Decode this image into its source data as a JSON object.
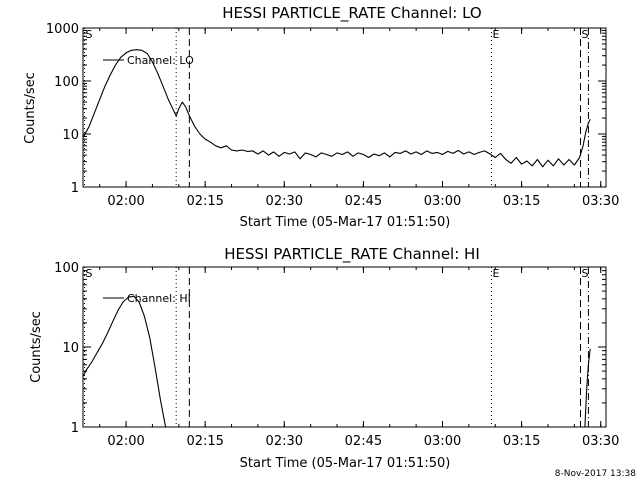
{
  "timestamp": "8-Nov-2017 13:38",
  "chart_data": [
    {
      "type": "line",
      "title": "HESSI PARTICLE_RATE Channel: LO",
      "xlabel": "Start Time (05-Mar-17 01:51:50)",
      "ylabel": "Counts/sec",
      "yscale": "log",
      "xlim": [
        "01:51:50",
        "03:31:00"
      ],
      "ylim": [
        1,
        1000
      ],
      "xtick_labels": [
        "02:00",
        "02:15",
        "02:30",
        "02:45",
        "03:00",
        "03:15",
        "03:30"
      ],
      "ytick_labels": [
        "1",
        "10",
        "100",
        "1000"
      ],
      "legend": "Channel: LO",
      "markers": [
        {
          "label": "S",
          "time": "01:51:50",
          "style": "dotted"
        },
        {
          "label": "",
          "time": "02:09:30",
          "style": "dotted"
        },
        {
          "label": "",
          "time": "02:12:00",
          "style": "dashed"
        },
        {
          "label": "E",
          "time": "03:09:00",
          "style": "dotted"
        },
        {
          "label": "S",
          "time": "03:26:10",
          "style": "dashed"
        },
        {
          "label": "",
          "time": "03:27:40",
          "style": "dashdot"
        }
      ],
      "series": [
        {
          "name": "Channel: LO",
          "points": [
            [
              "01:51:50",
              8.5
            ],
            [
              "01:53:00",
              14
            ],
            [
              "01:54:00",
              25
            ],
            [
              "01:55:00",
              45
            ],
            [
              "01:56:00",
              80
            ],
            [
              "01:57:00",
              130
            ],
            [
              "01:58:00",
              200
            ],
            [
              "01:59:00",
              280
            ],
            [
              "02:00:00",
              340
            ],
            [
              "02:01:00",
              380
            ],
            [
              "02:02:00",
              390
            ],
            [
              "02:03:00",
              380
            ],
            [
              "02:04:00",
              330
            ],
            [
              "02:05:00",
              230
            ],
            [
              "02:06:00",
              140
            ],
            [
              "02:07:00",
              80
            ],
            [
              "02:08:00",
              45
            ],
            [
              "02:09:00",
              28
            ],
            [
              "02:09:30",
              22
            ],
            [
              "02:10:00",
              30
            ],
            [
              "02:10:40",
              40
            ],
            [
              "02:11:20",
              32
            ],
            [
              "02:12:00",
              22
            ],
            [
              "02:13:00",
              14
            ],
            [
              "02:14:00",
              10
            ],
            [
              "02:15:00",
              8
            ],
            [
              "02:16:00",
              7
            ],
            [
              "02:17:00",
              6
            ],
            [
              "02:18:00",
              5.5
            ],
            [
              "02:19:00",
              6
            ],
            [
              "02:20:00",
              5
            ],
            [
              "02:21:00",
              4.8
            ],
            [
              "02:22:00",
              5
            ],
            [
              "02:23:00",
              4.7
            ],
            [
              "02:24:00",
              4.8
            ],
            [
              "02:25:00",
              4.2
            ],
            [
              "02:26:00",
              4.8
            ],
            [
              "02:27:00",
              4
            ],
            [
              "02:28:00",
              4.6
            ],
            [
              "02:29:00",
              3.8
            ],
            [
              "02:30:00",
              4.5
            ],
            [
              "02:31:00",
              4.2
            ],
            [
              "02:32:00",
              4.6
            ],
            [
              "02:33:00",
              3.4
            ],
            [
              "02:34:00",
              4.4
            ],
            [
              "02:35:00",
              4.1
            ],
            [
              "02:36:00",
              3.7
            ],
            [
              "02:37:00",
              4.4
            ],
            [
              "02:38:00",
              4.1
            ],
            [
              "02:39:00",
              3.8
            ],
            [
              "02:40:00",
              4.4
            ],
            [
              "02:41:00",
              4.1
            ],
            [
              "02:42:00",
              4.6
            ],
            [
              "02:43:00",
              3.8
            ],
            [
              "02:44:00",
              4.4
            ],
            [
              "02:45:00",
              4.1
            ],
            [
              "02:46:00",
              3.6
            ],
            [
              "02:47:00",
              4.2
            ],
            [
              "02:48:00",
              3.9
            ],
            [
              "02:49:00",
              4.4
            ],
            [
              "02:50:00",
              3.7
            ],
            [
              "02:51:00",
              4.5
            ],
            [
              "02:52:00",
              4.3
            ],
            [
              "02:53:00",
              4.8
            ],
            [
              "02:54:00",
              4.2
            ],
            [
              "02:55:00",
              4.6
            ],
            [
              "02:56:00",
              4.1
            ],
            [
              "02:57:00",
              4.8
            ],
            [
              "02:58:00",
              4.3
            ],
            [
              "02:59:00",
              4.5
            ],
            [
              "03:00:00",
              4.1
            ],
            [
              "03:01:00",
              4.7
            ],
            [
              "03:02:00",
              4.3
            ],
            [
              "03:03:00",
              4.9
            ],
            [
              "03:04:00",
              4.2
            ],
            [
              "03:05:00",
              4.6
            ],
            [
              "03:06:00",
              4.1
            ],
            [
              "03:07:00",
              4.5
            ],
            [
              "03:08:00",
              4.8
            ],
            [
              "03:09:00",
              4.2
            ],
            [
              "03:10:00",
              3.6
            ],
            [
              "03:11:00",
              4.3
            ],
            [
              "03:12:00",
              3.3
            ],
            [
              "03:13:00",
              2.8
            ],
            [
              "03:14:00",
              3.6
            ],
            [
              "03:15:00",
              2.7
            ],
            [
              "03:16:00",
              3.1
            ],
            [
              "03:17:00",
              2.5
            ],
            [
              "03:18:00",
              3.3
            ],
            [
              "03:19:00",
              2.4
            ],
            [
              "03:20:00",
              3.2
            ],
            [
              "03:21:00",
              2.5
            ],
            [
              "03:22:00",
              3.4
            ],
            [
              "03:23:00",
              2.6
            ],
            [
              "03:24:00",
              3.3
            ],
            [
              "03:25:00",
              2.6
            ],
            [
              "03:26:00",
              3.6
            ],
            [
              "03:26:40",
              6
            ],
            [
              "03:27:10",
              11
            ],
            [
              "03:27:40",
              16
            ],
            [
              "03:28:00",
              19
            ]
          ]
        }
      ]
    },
    {
      "type": "line",
      "title": "HESSI PARTICLE_RATE Channel: HI",
      "xlabel": "Start Time (05-Mar-17 01:51:50)",
      "ylabel": "Counts/sec",
      "yscale": "log",
      "xlim": [
        "01:51:50",
        "03:31:00"
      ],
      "ylim": [
        1,
        100
      ],
      "xtick_labels": [
        "02:00",
        "02:15",
        "02:30",
        "02:45",
        "03:00",
        "03:15",
        "03:30"
      ],
      "ytick_labels": [
        "1",
        "10",
        "100"
      ],
      "legend": "Channel: HI",
      "markers": [
        {
          "label": "S",
          "time": "01:51:50",
          "style": "dotted"
        },
        {
          "label": "",
          "time": "02:09:30",
          "style": "dotted"
        },
        {
          "label": "",
          "time": "02:12:00",
          "style": "dashed"
        },
        {
          "label": "E",
          "time": "03:09:00",
          "style": "dotted"
        },
        {
          "label": "S",
          "time": "03:26:10",
          "style": "dashed"
        },
        {
          "label": "",
          "time": "03:27:40",
          "style": "dashdot"
        }
      ],
      "series": [
        {
          "name": "Channel: HI",
          "points": [
            [
              "01:51:50",
              4.3
            ],
            [
              "01:52:30",
              5.2
            ],
            [
              "01:53:30",
              6.5
            ],
            [
              "01:54:30",
              8.5
            ],
            [
              "01:55:30",
              11
            ],
            [
              "01:56:30",
              15
            ],
            [
              "01:57:30",
              21
            ],
            [
              "01:58:30",
              29
            ],
            [
              "01:59:30",
              37
            ],
            [
              "02:00:30",
              42
            ],
            [
              "02:01:30",
              43
            ],
            [
              "02:02:30",
              36
            ],
            [
              "02:03:30",
              24
            ],
            [
              "02:04:30",
              13
            ],
            [
              "02:05:30",
              5.5
            ],
            [
              "02:06:30",
              2.2
            ],
            [
              "02:07:30",
              1
            ]
          ]
        },
        {
          "name": "Channel: HI",
          "points": [
            [
              "03:27:00",
              1
            ],
            [
              "03:27:20",
              3
            ],
            [
              "03:27:40",
              6
            ],
            [
              "03:28:00",
              9.5
            ]
          ]
        }
      ]
    }
  ]
}
